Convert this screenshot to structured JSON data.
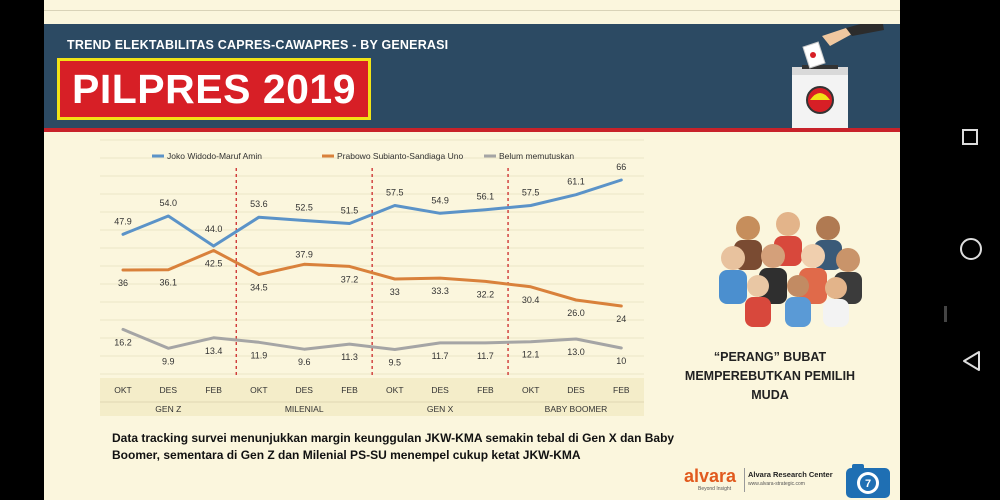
{
  "header": {
    "subtitle": "TREND ELEKTABILITAS CAPRES-CAWAPRES  - BY GENERASI",
    "title": "PILPRES 2019"
  },
  "colors": {
    "jokowi": "#5b93c8",
    "prabowo": "#d9813b",
    "undecided": "#a5a5a5",
    "divider": "#cc2a2a",
    "header_bg": "#2c4a63",
    "title_bg": "#d71f26",
    "title_border": "#f2e216"
  },
  "chart_data": {
    "type": "line",
    "title": "TREND ELEKTABILITAS CAPRES-CAWAPRES - BY GENERASI",
    "categories": [
      "OKT",
      "DES",
      "FEB",
      "OKT",
      "DES",
      "FEB",
      "OKT",
      "DES",
      "FEB",
      "OKT",
      "DES",
      "FEB"
    ],
    "groups": [
      "GEN Z",
      "MILENIAL",
      "GEN X",
      "BABY BOOMER"
    ],
    "ylim": [
      0,
      70
    ],
    "legend_position": "top",
    "series": [
      {
        "name": "Joko Widodo-Maruf Amin",
        "key": "jokowi",
        "values": [
          47.9,
          54.0,
          44.0,
          53.6,
          52.5,
          51.5,
          57.5,
          54.9,
          56.1,
          57.5,
          61.1,
          66
        ],
        "labels": [
          "47.9",
          "54.0",
          "44.0",
          "53.6",
          "52.5",
          "51.5",
          "57.5",
          "54.9",
          "56.1",
          "57.5",
          "61.1",
          "66"
        ]
      },
      {
        "name": "Prabowo Subianto-Sandiaga Uno",
        "key": "prabowo",
        "values": [
          36,
          36.1,
          42.5,
          34.5,
          37.9,
          37.2,
          33,
          33.3,
          32.2,
          30.4,
          26.0,
          24
        ],
        "labels": [
          "36",
          "36.1",
          "42.5",
          "34.5",
          "37.9",
          "37.2",
          "33",
          "33.3",
          "32.2",
          "30.4",
          "26.0",
          "24"
        ]
      },
      {
        "name": "Belum memutuskan",
        "key": "undecided",
        "values": [
          16.2,
          9.9,
          13.4,
          11.9,
          9.6,
          11.3,
          9.5,
          11.7,
          11.7,
          12.1,
          13.0,
          10
        ],
        "labels": [
          "16.2",
          "9.9",
          "13.4",
          "11.9",
          "9.6",
          "11.3",
          "9.5",
          "11.7",
          "11.7",
          "12.1",
          "13.0",
          "10"
        ]
      }
    ]
  },
  "caption": "Data tracking survei menunjukkan margin keunggulan JKW-KMA semakin tebal di Gen X dan Baby Boomer, sementara di Gen Z dan Milenial PS-SU menempel cukup ketat JKW-KMA",
  "side_title": "“PERANG” BUBAT MEMPEREBUTKAN PEMILIH MUDA",
  "brand": {
    "logo": "alvara",
    "tagline": "Beyond Insight",
    "name": "Alvara Research Center",
    "url": "www.alvara-strategic.com"
  },
  "page_number": "7"
}
